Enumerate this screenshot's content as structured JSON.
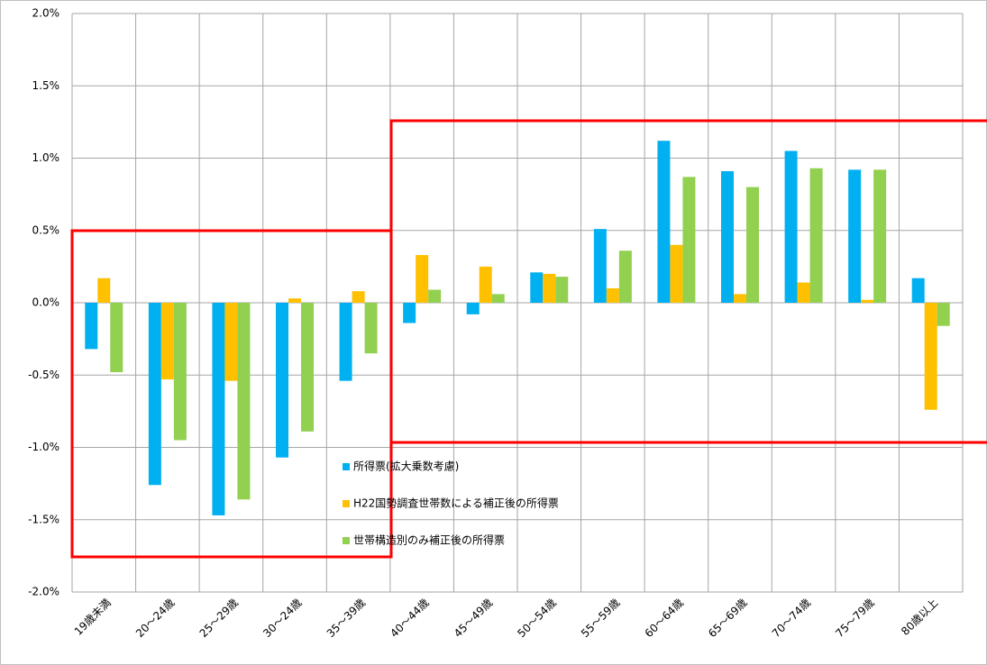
{
  "chart_data": {
    "type": "bar",
    "categories": [
      "19歳未満",
      "20〜24歳",
      "25〜29歳",
      "30〜24歳",
      "35〜39歳",
      "40〜44歳",
      "45〜49歳",
      "50〜54歳",
      "55〜59歳",
      "60〜64歳",
      "65〜69歳",
      "70〜74歳",
      "75〜79歳",
      "80歳以上"
    ],
    "series": [
      {
        "name": "所得票(拡大乗数考慮)",
        "color": "#00b0f0",
        "values": [
          -0.32,
          -1.26,
          -1.47,
          -1.07,
          -0.54,
          -0.14,
          -0.08,
          0.21,
          0.51,
          1.12,
          0.91,
          1.05,
          0.92,
          0.17
        ]
      },
      {
        "name": "H22国勢調査世帯数による補正後の所得票",
        "color": "#ffc000",
        "values": [
          0.17,
          -0.53,
          -0.54,
          0.03,
          0.08,
          0.33,
          0.25,
          0.2,
          0.1,
          0.4,
          0.06,
          0.14,
          0.02,
          -0.74
        ]
      },
      {
        "name": "世帯構造別のみ補正後の所得票",
        "color": "#92d050",
        "values": [
          -0.48,
          -0.95,
          -1.36,
          -0.89,
          -0.35,
          0.09,
          0.06,
          0.18,
          0.36,
          0.87,
          0.8,
          0.93,
          0.92,
          -0.16
        ]
      }
    ],
    "ylim": [
      -2,
      2
    ],
    "yticks": [
      {
        "value": -2,
        "label": "-2.0%"
      },
      {
        "value": -1.5,
        "label": "-1.5%"
      },
      {
        "value": -1,
        "label": "-1.0%"
      },
      {
        "value": -0.5,
        "label": "-0.5%"
      },
      {
        "value": 0,
        "label": "0.0%"
      },
      {
        "value": 0.5,
        "label": "0.5%"
      },
      {
        "value": 1,
        "label": "1.0%"
      },
      {
        "value": 1.5,
        "label": "1.5%"
      },
      {
        "value": 2,
        "label": "2.0%"
      }
    ],
    "grid": true
  }
}
